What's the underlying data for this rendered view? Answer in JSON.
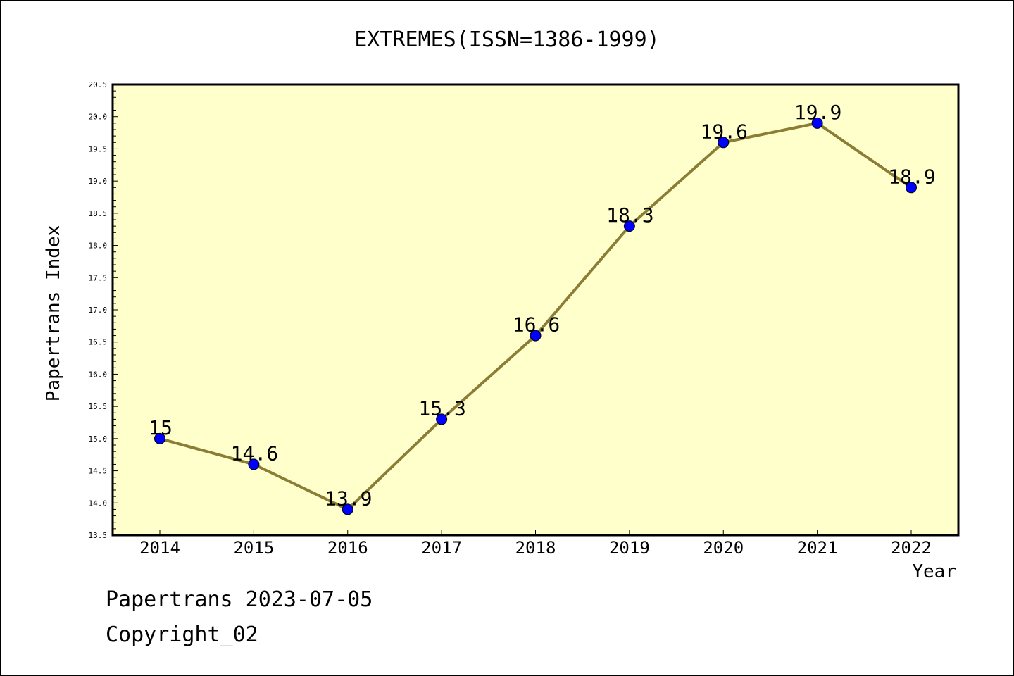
{
  "chart_data": {
    "type": "line",
    "title": "EXTREMES(ISSN=1386-1999)",
    "xlabel": "Year",
    "ylabel": "Papertrans Index",
    "categories": [
      "2014",
      "2015",
      "2016",
      "2017",
      "2018",
      "2019",
      "2020",
      "2021",
      "2022"
    ],
    "series": [
      {
        "values": [
          15,
          14.6,
          13.9,
          15.3,
          16.6,
          18.3,
          19.6,
          19.9,
          18.9
        ],
        "data_labels": [
          "15",
          "14.6",
          "13.9",
          "15.3",
          "16.6",
          "18.3",
          "19.6",
          "19.9",
          "18.9"
        ]
      }
    ],
    "ylim": [
      13.5,
      20.5
    ],
    "y_ticks": [
      "13.5",
      "14.0",
      "14.5",
      "15.0",
      "15.5",
      "16.0",
      "16.5",
      "17.0",
      "17.5",
      "18.0",
      "18.5",
      "19.0",
      "19.5",
      "20.0",
      "20.5"
    ],
    "grid": false,
    "legend": "none",
    "colors": {
      "plot_background": "#ffffcc",
      "line": "#8b7d35",
      "marker": "#0000ff"
    }
  },
  "footer": {
    "line1": "Papertrans 2023-07-05",
    "line2": "Copyright_02"
  }
}
